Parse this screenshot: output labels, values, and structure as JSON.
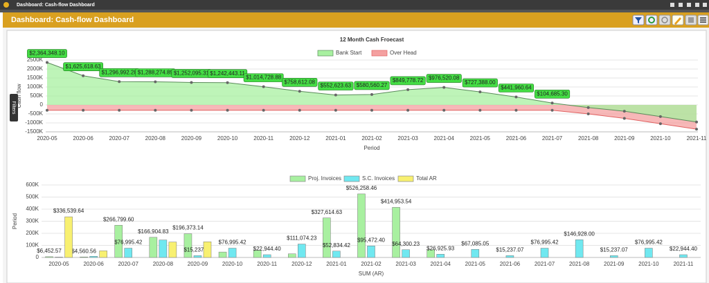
{
  "window": {
    "title": "Dashboard: Cash-flow Dashboard"
  },
  "toolbar": {
    "title": "Dashboard: Cash-flow Dashboard"
  },
  "side_tab": "Filters",
  "chart_data": [
    {
      "type": "area",
      "title": "12 Month Cash Froecast",
      "x_label": "Period",
      "y_label": "Cash flow",
      "categories": [
        "2020-05",
        "2020-06",
        "2020-07",
        "2020-08",
        "2020-09",
        "2020-10",
        "2020-11",
        "2020-12",
        "2021-01",
        "2021-02",
        "2021-03",
        "2021-04",
        "2021-05",
        "2021-06",
        "2021-07",
        "2021-08",
        "2021-09",
        "2021-10",
        "2021-11"
      ],
      "series": [
        {
          "name": "Over Head",
          "color": "#f4a0a0",
          "line_color": "#e06060",
          "values": [
            -300000,
            -300000,
            -300000,
            -300000,
            -300000,
            -300000,
            -300000,
            -300000,
            -300000,
            -300000,
            -300000,
            -300000,
            -300000,
            -300000,
            -300000,
            -500000,
            -750000,
            -1050000,
            -1350000
          ]
        },
        {
          "name": "Bank Start",
          "color": "#a8f0a0",
          "line_color": "#5a8a5a",
          "values": [
            2364348.1,
            1625618.63,
            1296992.28,
            1288274.89,
            1252095.31,
            1242443.11,
            1014728.88,
            758612.08,
            552623.63,
            580560.27,
            849778.72,
            976520.08,
            727388.0,
            441960.64,
            104685.3,
            -150000,
            -350000,
            -650000,
            -950000
          ],
          "value_labels": [
            "$2,364,348.10",
            "$1,625,618.63",
            "$1,296,992.28",
            "$1,288,274.89",
            "$1,252,095.31",
            "$1,242,443.11",
            "$1,014,728.88",
            "$758,612.08",
            "$552,623.63",
            "$580,560.27",
            "$849,778.72",
            "$976,520.08",
            "$727,388.00",
            "$441,960.64",
            "$104,685.30",
            null,
            null,
            null,
            null
          ]
        }
      ],
      "ylim": [
        -1500000,
        2500000
      ],
      "yticks": [
        {
          "value": -1500000,
          "label": "-1500K"
        },
        {
          "value": -1000000,
          "label": "-1000K"
        },
        {
          "value": -500000,
          "label": "-500K"
        },
        0,
        {
          "value": 500000,
          "label": "500K"
        },
        {
          "value": 1000000,
          "label": "1000K"
        },
        {
          "value": 1500000,
          "label": "1500K"
        },
        {
          "value": 2000000,
          "label": "2000K"
        },
        {
          "value": 2500000,
          "label": "2500K"
        }
      ],
      "grid": true,
      "legend": "top"
    },
    {
      "type": "bar",
      "x_label": "SUM (AR)",
      "y_label": "Period",
      "categories": [
        "2020-05",
        "2020-06",
        "2020-07",
        "2020-08",
        "2020-09",
        "2020-10",
        "2020-11",
        "2020-12",
        "2021-01",
        "2021-02",
        "2021-03",
        "2021-04",
        "2021-05",
        "2021-06",
        "2021-07",
        "2021-08",
        "2021-09",
        "2021-10",
        "2021-11"
      ],
      "series": [
        {
          "name": "Proj. Invoices",
          "color": "#a8f0a0",
          "values": [
            6452.57,
            4560.56,
            266799.6,
            166904.83,
            196373.14,
            45000,
            60000,
            30000,
            327614.63,
            526258.46,
            414953.54,
            65000,
            0,
            0,
            0,
            0,
            0,
            0,
            0
          ],
          "value_labels": [
            "$6,452.57",
            "$4,560.56",
            "$266,799.60",
            "$166,904.83",
            "$196,373.14",
            null,
            null,
            null,
            "$327,614.63",
            "$526,258.46",
            "$414,953.54",
            null,
            null,
            null,
            null,
            null,
            null,
            null,
            null
          ]
        },
        {
          "name": "S.C. Invoices",
          "color": "#70e8f0",
          "values": [
            3000,
            10000,
            76995.42,
            145000,
            15237.07,
            76995.42,
            22944.4,
            111074.23,
            52834.42,
            95472.4,
            64300.23,
            26925.93,
            67085.05,
            15237.07,
            76995.42,
            146928.0,
            15237.07,
            76995.42,
            22944.4
          ],
          "value_labels": [
            null,
            null,
            "$76,995.42",
            null,
            "$15,237.07",
            "$76,995.42",
            "$22,944.40",
            "$111,074.23",
            "$52,834.42",
            "$95,472.40",
            "$64,300.23",
            "$26,925.93",
            "$67,085.05",
            "$15,237.07",
            "$76,995.42",
            "$146,928.00",
            "$15,237.07",
            "$76,995.42",
            "$22,944.40"
          ]
        },
        {
          "name": "Total AR",
          "color": "#f8f070",
          "values": [
            336539.64,
            55000,
            0,
            128000,
            130000,
            0,
            0,
            0,
            0,
            0,
            0,
            0,
            0,
            0,
            0,
            0,
            0,
            0,
            0
          ],
          "value_labels": [
            "$336,539.64",
            null,
            null,
            null,
            null,
            null,
            null,
            null,
            null,
            null,
            null,
            null,
            null,
            null,
            null,
            null,
            null,
            null,
            null
          ]
        }
      ],
      "ylim": [
        0,
        600000
      ],
      "yticks": [
        0,
        {
          "value": 100000,
          "label": "100K"
        },
        {
          "value": 200000,
          "label": "200K"
        },
        {
          "value": 300000,
          "label": "300K"
        },
        {
          "value": 400000,
          "label": "400K"
        },
        {
          "value": 500000,
          "label": "500K"
        },
        {
          "value": 600000,
          "label": "600K"
        }
      ],
      "grid": true,
      "legend": "top"
    }
  ]
}
